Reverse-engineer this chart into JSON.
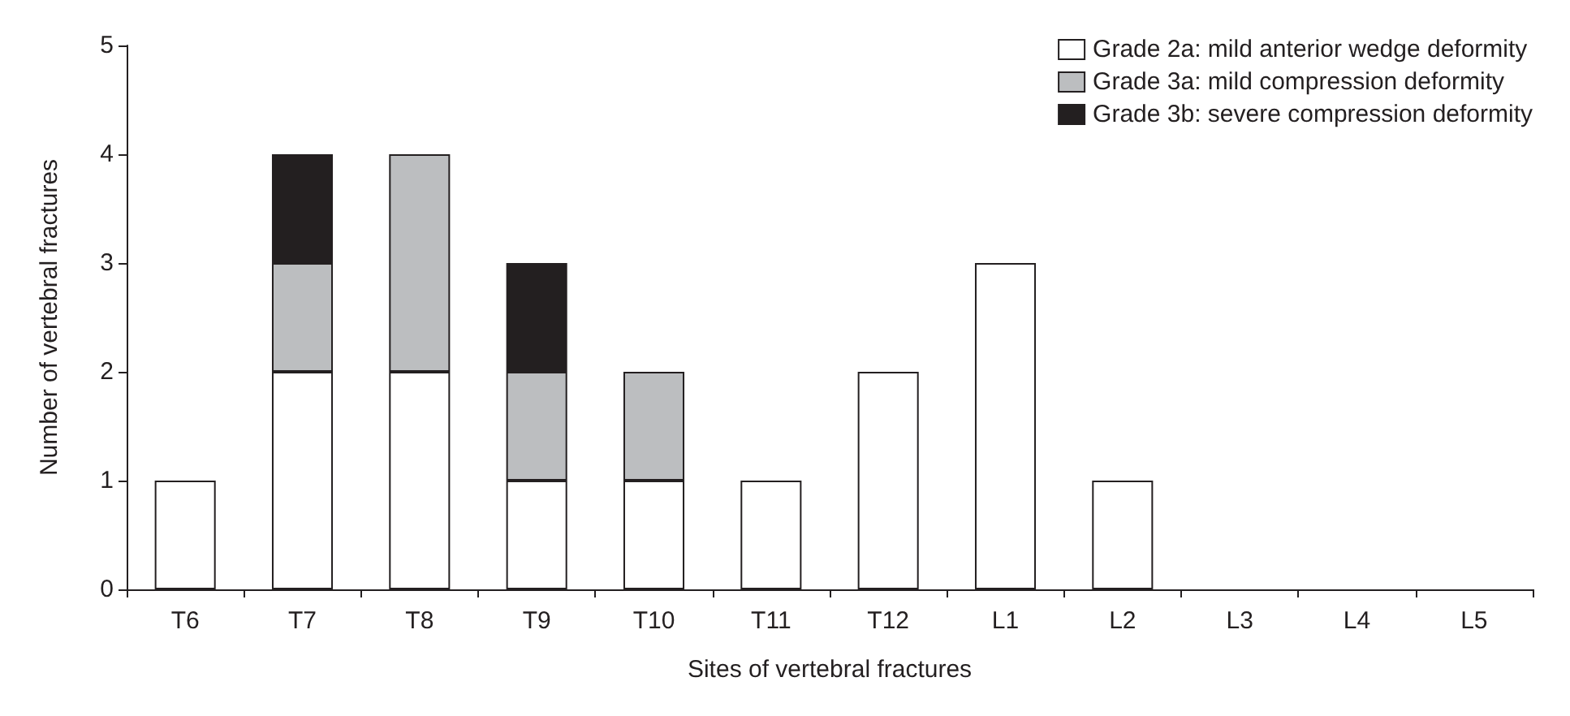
{
  "chart_data": {
    "type": "bar",
    "stacked": true,
    "xlabel": "Sites of vertebral fractures",
    "ylabel": "Number of vertebral fractures",
    "categories": [
      "T6",
      "T7",
      "T8",
      "T9",
      "T10",
      "T11",
      "T12",
      "L1",
      "L2",
      "L3",
      "L4",
      "L5"
    ],
    "series": [
      {
        "name": "Grade 2a: mild anterior wedge deformity",
        "color": "#ffffff",
        "values": [
          1,
          2,
          2,
          1,
          1,
          1,
          2,
          3,
          1,
          0,
          0,
          0
        ]
      },
      {
        "name": "Grade 3a: mild compression deformity",
        "color": "#bcbec0",
        "values": [
          0,
          1,
          2,
          1,
          1,
          0,
          0,
          0,
          0,
          0,
          0,
          0
        ]
      },
      {
        "name": "Grade 3b: severe compression deformity",
        "color": "#231f20",
        "values": [
          0,
          1,
          0,
          1,
          0,
          0,
          0,
          0,
          0,
          0,
          0,
          0
        ]
      }
    ],
    "ylim": [
      0,
      5
    ],
    "yticks": [
      0,
      1,
      2,
      3,
      4,
      5
    ],
    "grid": false,
    "legend": "top right"
  }
}
